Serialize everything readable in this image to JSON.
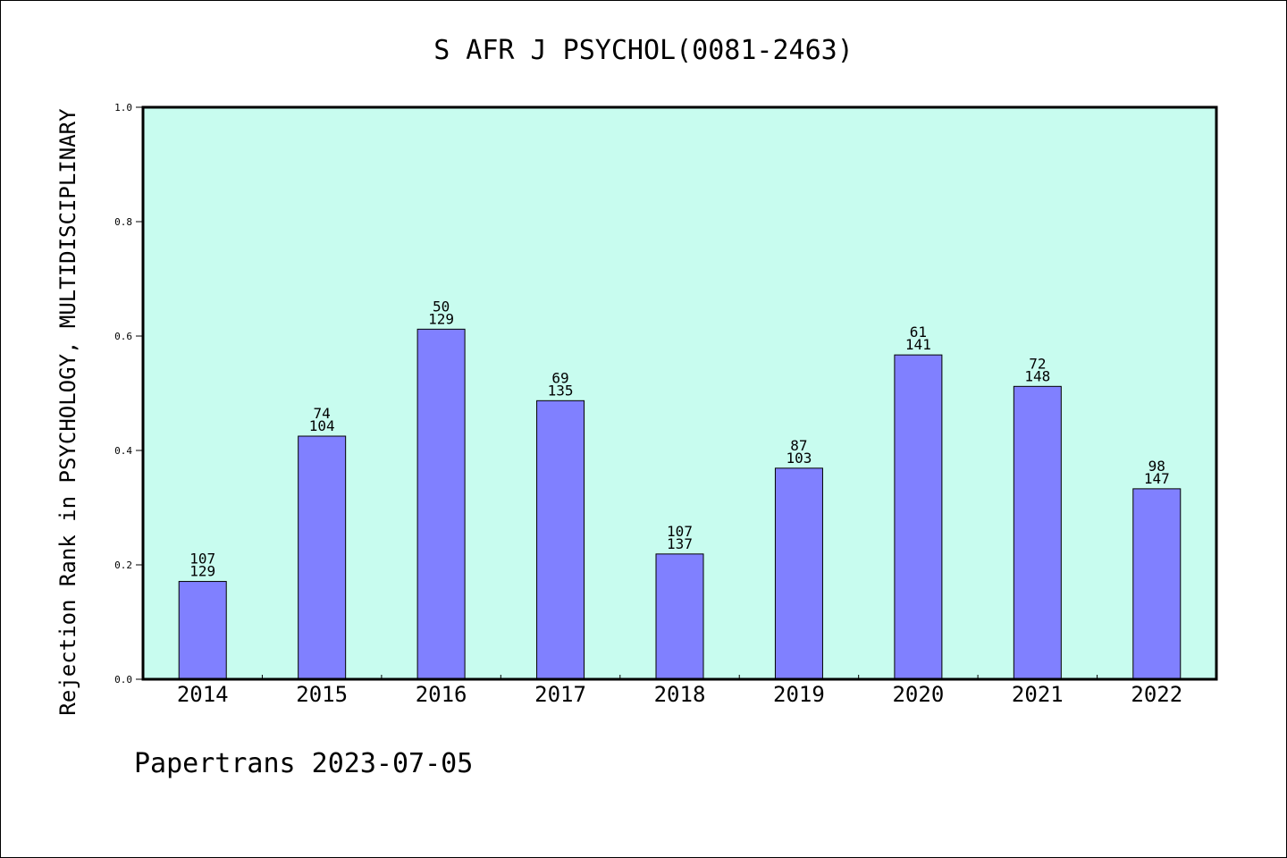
{
  "chart_data": {
    "type": "bar",
    "title": "S AFR J PSYCHOL(0081-2463)",
    "xlabel": "",
    "ylabel": "Rejection Rank in PSYCHOLOGY, MULTIDISCIPLINARY",
    "ylim": [
      0,
      1.0
    ],
    "yticks": [
      "0.0",
      "0.2",
      "0.4",
      "0.6",
      "0.8",
      "1.0"
    ],
    "categories": [
      "2014",
      "2015",
      "2016",
      "2017",
      "2018",
      "2019",
      "2020",
      "2021",
      "2022"
    ],
    "values": [
      0.171,
      0.425,
      0.612,
      0.487,
      0.219,
      0.369,
      0.567,
      0.512,
      0.333
    ],
    "labels_top": [
      "107",
      "74",
      "50",
      "69",
      "107",
      "87",
      "61",
      "72",
      "98"
    ],
    "labels_bottom": [
      "129",
      "104",
      "129",
      "135",
      "137",
      "103",
      "141",
      "148",
      "147"
    ],
    "grid": false,
    "colors": {
      "plot_background": "#c8fcef",
      "bar_fill": "#8080ff",
      "bar_stroke": "#000000"
    }
  },
  "footer": {
    "text": "Papertrans 2023-07-05"
  }
}
